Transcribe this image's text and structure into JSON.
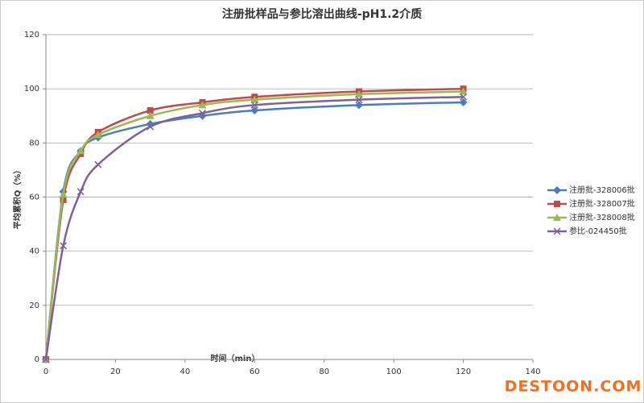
{
  "chart_data": {
    "type": "line",
    "title": "注册批样品与参比溶出曲线-pH1.2介质",
    "x_label": "时间（min）",
    "y_label": "平均累积Q（%）",
    "x": [
      0,
      5,
      10,
      15,
      30,
      45,
      60,
      90,
      120
    ],
    "series": [
      {
        "name": "注册批-328006批",
        "color": "#4a7ebb",
        "values": [
          0,
          62,
          77,
          82,
          87,
          90,
          92,
          94,
          95
        ]
      },
      {
        "name": "注册批-328007批",
        "color": "#be4b48",
        "values": [
          0,
          59,
          76,
          84,
          92,
          95,
          97,
          99,
          100
        ]
      },
      {
        "name": "注册批-328008批",
        "color": "#98b954",
        "values": [
          0,
          61,
          77,
          83,
          90,
          94,
          96,
          98,
          99
        ]
      },
      {
        "name": "参比-024450批",
        "color": "#7d60a0",
        "values": [
          0,
          42,
          62,
          72,
          86,
          91,
          94,
          96,
          97
        ]
      }
    ],
    "xlim": [
      0,
      140
    ],
    "xticks": [
      0,
      20,
      40,
      60,
      80,
      100,
      120,
      140
    ],
    "ylim": [
      0,
      120
    ],
    "yticks": [
      0,
      20,
      40,
      60,
      80,
      100,
      120
    ],
    "grid": true,
    "legend": "right",
    "watermark": "DESTOON.COM"
  }
}
